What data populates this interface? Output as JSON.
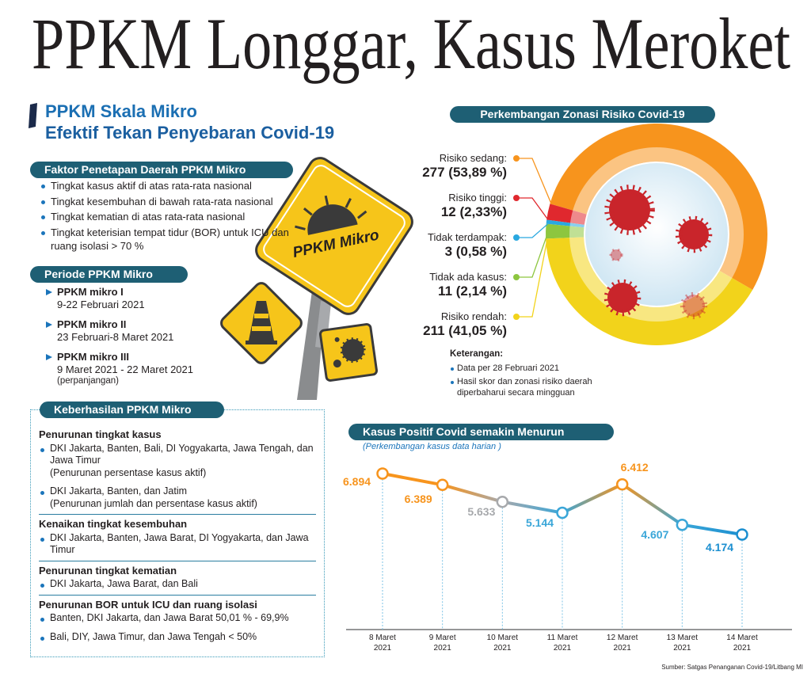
{
  "title": "PPKM Longgar, Kasus Meroket",
  "subtitle": {
    "line1": "PPKM Skala Mikro",
    "line2": "Efektif Tekan Penyebaran Covid-19"
  },
  "faktor": {
    "heading": "Faktor Penetapan Daerah PPKM Mikro",
    "items": [
      "Tingkat kasus aktif di atas rata-rata nasional",
      "Tingkat kesembuhan di bawah rata-rata nasional",
      "Tingkat kematian di atas rata-rata nasional",
      "Tingkat keterisian tempat tidur (BOR) untuk ICU dan ruang isolasi > 70 %"
    ]
  },
  "periode": {
    "heading": "Periode PPKM Mikro",
    "items": [
      {
        "name": "PPKM mikro I",
        "dates": "9-22 Februari 2021"
      },
      {
        "name": "PPKM mikro II",
        "dates": "23 Februari-8 Maret 2021"
      },
      {
        "name": "PPKM mikro III",
        "dates": "9 Maret 2021 - 22 Maret 2021",
        "note": "(perpanjangan)"
      }
    ]
  },
  "sign_label": "PPKM Mikro",
  "keberhasilan": {
    "heading": "Keberhasilan PPKM Mikro",
    "sections": [
      {
        "heading": "Penurunan tingkat kasus",
        "items": [
          {
            "text": "DKI Jakarta, Banten, Bali, DI Yogyakarta, Jawa Tengah, dan Jawa Timur",
            "note": "(Penurunan persentase kasus aktif)"
          },
          {
            "text": "DKI Jakarta, Banten, dan Jatim",
            "note": "(Penurunan jumlah dan persentase kasus aktif)"
          }
        ]
      },
      {
        "heading": "Kenaikan tingkat kesembuhan",
        "items": [
          {
            "text": "DKI Jakarta, Banten, Jawa Barat, DI Yogyakarta, dan Jawa Timur"
          }
        ]
      },
      {
        "heading": "Penurunan tingkat kematian",
        "items": [
          {
            "text": "DKI Jakarta, Jawa Barat, dan Bali"
          }
        ]
      },
      {
        "heading": "Penurunan BOR untuk ICU dan ruang isolasi",
        "items": [
          {
            "text": "Banten, DKI Jakarta, dan Jawa Barat 50,01 % - 69,9%"
          },
          {
            "text": "Bali, DIY, Jawa Timur, dan Jawa Tengah < 50%"
          }
        ]
      }
    ]
  },
  "chart_data": [
    {
      "type": "pie",
      "title": "Perkembangan Zonasi Risiko Covid-19",
      "categories": [
        "Risiko sedang:",
        "Risiko tinggi:",
        "Tidak terdampak:",
        "Tidak ada kasus:",
        "Risiko rendah:"
      ],
      "values": [
        277,
        12,
        3,
        11,
        211
      ],
      "value_labels": [
        "277 (53,89 %)",
        "12 (2,33%)",
        "3 (0,58 %)",
        "11 (2,14 %)",
        "211 (41,05 %)"
      ],
      "colors": [
        "#f7941d",
        "#e0282e",
        "#29a8e0",
        "#8dc63f",
        "#f2d31b"
      ]
    },
    {
      "type": "line",
      "title": "Kasus Positif Covid semakin Menurun",
      "subtitle": "(Perkembangan kasus data harian )",
      "categories": [
        "8 Maret 2021",
        "9 Maret 2021",
        "10 Maret 2021",
        "11 Maret 2021",
        "12 Maret 2021",
        "13 Maret 2021",
        "14 Maret 2021"
      ],
      "values": [
        6894,
        6389,
        5633,
        5144,
        6412,
        4607,
        4174
      ],
      "value_labels": [
        "6.894",
        "6.389",
        "5.633",
        "5.144",
        "6.412",
        "4.607",
        "4.174"
      ],
      "point_colors": [
        "#f7941d",
        "#f7941d",
        "#a7a9ac",
        "#3aa6d8",
        "#f7941d",
        "#3aa6d8",
        "#1c8fd0"
      ]
    }
  ],
  "keterangan": {
    "heading": "Keterangan:",
    "items": [
      "Data per 28 Februari 2021",
      "Hasil  skor dan zonasi risiko daerah diperbaharui secara mingguan"
    ]
  },
  "source": "Sumber: Satgas Penanganan Covid-19/Litbang MI"
}
